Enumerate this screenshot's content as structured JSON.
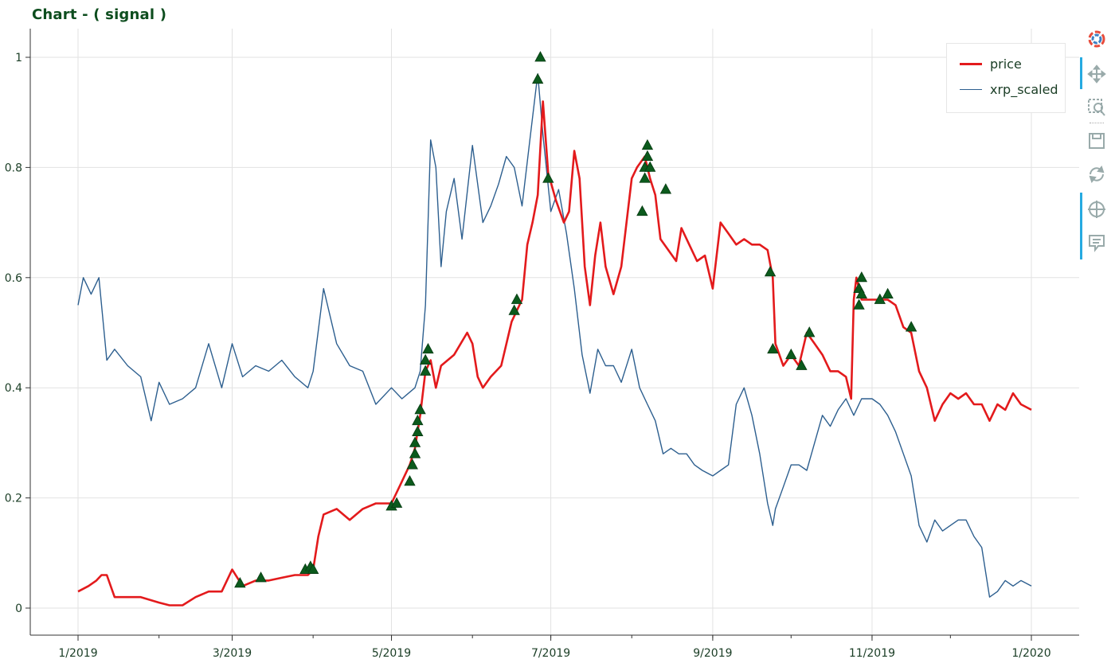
{
  "title": "Chart - ( signal )",
  "toolbar": {
    "tools": [
      "bokeh-logo-icon",
      "pan-icon",
      "box-zoom-icon",
      "save-icon",
      "reset-icon",
      "crosshair-icon",
      "hover-icon"
    ]
  },
  "chart_data": {
    "type": "line",
    "title": "Chart - ( signal )",
    "xlabel": "",
    "ylabel": "",
    "x_ticks": [
      "1/2019",
      "3/2019",
      "5/2019",
      "7/2019",
      "9/2019",
      "11/2019",
      "1/2020"
    ],
    "y_ticks": [
      "0",
      "0.2",
      "0.4",
      "0.6",
      "0.8",
      "1"
    ],
    "xlim": [
      "2018-12-10",
      "2020-01-28"
    ],
    "ylim": [
      -0.05,
      1.05
    ],
    "grid": true,
    "legend": "top-right",
    "colors": {
      "price": "#e31a1c",
      "xrp_scaled": "#2d5f8f",
      "signal": "#0b5a1c"
    },
    "series": [
      {
        "name": "price",
        "x": [
          "2019-01-01",
          "2019-01-05",
          "2019-01-08",
          "2019-01-10",
          "2019-01-12",
          "2019-01-15",
          "2019-01-20",
          "2019-01-25",
          "2019-02-01",
          "2019-02-05",
          "2019-02-10",
          "2019-02-15",
          "2019-02-20",
          "2019-02-25",
          "2019-03-01",
          "2019-03-05",
          "2019-03-10",
          "2019-03-15",
          "2019-03-20",
          "2019-03-25",
          "2019-03-30",
          "2019-04-01",
          "2019-04-03",
          "2019-04-05",
          "2019-04-10",
          "2019-04-15",
          "2019-04-20",
          "2019-04-25",
          "2019-05-01",
          "2019-05-05",
          "2019-05-08",
          "2019-05-10",
          "2019-05-12",
          "2019-05-14",
          "2019-05-16",
          "2019-05-18",
          "2019-05-20",
          "2019-05-25",
          "2019-05-30",
          "2019-06-01",
          "2019-06-03",
          "2019-06-05",
          "2019-06-08",
          "2019-06-12",
          "2019-06-16",
          "2019-06-18",
          "2019-06-20",
          "2019-06-22",
          "2019-06-24",
          "2019-06-26",
          "2019-06-28",
          "2019-06-30",
          "2019-07-03",
          "2019-07-06",
          "2019-07-08",
          "2019-07-10",
          "2019-07-12",
          "2019-07-14",
          "2019-07-16",
          "2019-07-18",
          "2019-07-20",
          "2019-07-22",
          "2019-07-25",
          "2019-07-28",
          "2019-08-01",
          "2019-08-03",
          "2019-08-06",
          "2019-08-08",
          "2019-08-10",
          "2019-08-12",
          "2019-08-15",
          "2019-08-18",
          "2019-08-20",
          "2019-08-23",
          "2019-08-26",
          "2019-08-29",
          "2019-09-01",
          "2019-09-04",
          "2019-09-07",
          "2019-09-10",
          "2019-09-13",
          "2019-09-16",
          "2019-09-19",
          "2019-09-22",
          "2019-09-24",
          "2019-09-25",
          "2019-09-28",
          "2019-10-01",
          "2019-10-04",
          "2019-10-07",
          "2019-10-10",
          "2019-10-13",
          "2019-10-16",
          "2019-10-19",
          "2019-10-22",
          "2019-10-24",
          "2019-10-25",
          "2019-10-26",
          "2019-10-28",
          "2019-11-01",
          "2019-11-04",
          "2019-11-07",
          "2019-11-10",
          "2019-11-13",
          "2019-11-16",
          "2019-11-19",
          "2019-11-22",
          "2019-11-25",
          "2019-11-28",
          "2019-12-01",
          "2019-12-04",
          "2019-12-07",
          "2019-12-10",
          "2019-12-13",
          "2019-12-16",
          "2019-12-19",
          "2019-12-22",
          "2019-12-25",
          "2019-12-28",
          "2020-01-01"
        ],
        "y": [
          0.03,
          0.04,
          0.05,
          0.06,
          0.06,
          0.02,
          0.02,
          0.02,
          0.01,
          0.005,
          0.005,
          0.02,
          0.03,
          0.03,
          0.07,
          0.04,
          0.05,
          0.05,
          0.055,
          0.06,
          0.06,
          0.07,
          0.13,
          0.17,
          0.18,
          0.16,
          0.18,
          0.19,
          0.19,
          0.23,
          0.26,
          0.29,
          0.35,
          0.43,
          0.45,
          0.4,
          0.44,
          0.46,
          0.5,
          0.48,
          0.42,
          0.4,
          0.42,
          0.44,
          0.52,
          0.54,
          0.56,
          0.66,
          0.7,
          0.75,
          0.92,
          0.79,
          0.74,
          0.7,
          0.72,
          0.83,
          0.78,
          0.62,
          0.55,
          0.64,
          0.7,
          0.62,
          0.57,
          0.62,
          0.78,
          0.8,
          0.82,
          0.78,
          0.75,
          0.67,
          0.65,
          0.63,
          0.69,
          0.66,
          0.63,
          0.64,
          0.58,
          0.7,
          0.68,
          0.66,
          0.67,
          0.66,
          0.66,
          0.65,
          0.6,
          0.48,
          0.44,
          0.46,
          0.44,
          0.5,
          0.48,
          0.46,
          0.43,
          0.43,
          0.42,
          0.38,
          0.56,
          0.6,
          0.56,
          0.56,
          0.56,
          0.56,
          0.55,
          0.51,
          0.5,
          0.43,
          0.4,
          0.34,
          0.37,
          0.39,
          0.38,
          0.39,
          0.37,
          0.37,
          0.34,
          0.37,
          0.36,
          0.39,
          0.37,
          0.36
        ]
      },
      {
        "name": "xrp_scaled",
        "x": [
          "2019-01-01",
          "2019-01-03",
          "2019-01-06",
          "2019-01-09",
          "2019-01-12",
          "2019-01-15",
          "2019-01-20",
          "2019-01-25",
          "2019-01-29",
          "2019-02-01",
          "2019-02-05",
          "2019-02-10",
          "2019-02-15",
          "2019-02-20",
          "2019-02-25",
          "2019-03-01",
          "2019-03-05",
          "2019-03-10",
          "2019-03-15",
          "2019-03-20",
          "2019-03-25",
          "2019-03-30",
          "2019-04-01",
          "2019-04-05",
          "2019-04-10",
          "2019-04-15",
          "2019-04-20",
          "2019-04-25",
          "2019-05-01",
          "2019-05-05",
          "2019-05-10",
          "2019-05-12",
          "2019-05-14",
          "2019-05-16",
          "2019-05-18",
          "2019-05-20",
          "2019-05-22",
          "2019-05-25",
          "2019-05-28",
          "2019-06-01",
          "2019-06-05",
          "2019-06-08",
          "2019-06-11",
          "2019-06-14",
          "2019-06-17",
          "2019-06-20",
          "2019-06-23",
          "2019-06-26",
          "2019-06-28",
          "2019-07-01",
          "2019-07-04",
          "2019-07-07",
          "2019-07-10",
          "2019-07-13",
          "2019-07-16",
          "2019-07-19",
          "2019-07-22",
          "2019-07-25",
          "2019-07-28",
          "2019-08-01",
          "2019-08-04",
          "2019-08-07",
          "2019-08-10",
          "2019-08-13",
          "2019-08-16",
          "2019-08-19",
          "2019-08-22",
          "2019-08-25",
          "2019-08-28",
          "2019-09-01",
          "2019-09-04",
          "2019-09-07",
          "2019-09-10",
          "2019-09-13",
          "2019-09-16",
          "2019-09-19",
          "2019-09-22",
          "2019-09-24",
          "2019-09-25",
          "2019-09-28",
          "2019-10-01",
          "2019-10-04",
          "2019-10-07",
          "2019-10-10",
          "2019-10-13",
          "2019-10-16",
          "2019-10-19",
          "2019-10-22",
          "2019-10-25",
          "2019-10-28",
          "2019-11-01",
          "2019-11-04",
          "2019-11-07",
          "2019-11-10",
          "2019-11-13",
          "2019-11-16",
          "2019-11-19",
          "2019-11-22",
          "2019-11-25",
          "2019-11-28",
          "2019-12-01",
          "2019-12-04",
          "2019-12-07",
          "2019-12-10",
          "2019-12-13",
          "2019-12-16",
          "2019-12-19",
          "2019-12-22",
          "2019-12-25",
          "2019-12-28",
          "2020-01-01"
        ],
        "y": [
          0.55,
          0.6,
          0.57,
          0.6,
          0.45,
          0.47,
          0.44,
          0.42,
          0.34,
          0.41,
          0.37,
          0.38,
          0.4,
          0.48,
          0.4,
          0.48,
          0.42,
          0.44,
          0.43,
          0.45,
          0.42,
          0.4,
          0.43,
          0.58,
          0.48,
          0.44,
          0.43,
          0.37,
          0.4,
          0.38,
          0.4,
          0.43,
          0.55,
          0.85,
          0.8,
          0.62,
          0.72,
          0.78,
          0.67,
          0.84,
          0.7,
          0.73,
          0.77,
          0.82,
          0.8,
          0.73,
          0.85,
          0.97,
          0.86,
          0.72,
          0.76,
          0.68,
          0.58,
          0.46,
          0.39,
          0.47,
          0.44,
          0.44,
          0.41,
          0.47,
          0.4,
          0.37,
          0.34,
          0.28,
          0.29,
          0.28,
          0.28,
          0.26,
          0.25,
          0.24,
          0.25,
          0.26,
          0.37,
          0.4,
          0.35,
          0.28,
          0.19,
          0.15,
          0.18,
          0.22,
          0.26,
          0.26,
          0.25,
          0.3,
          0.35,
          0.33,
          0.36,
          0.38,
          0.35,
          0.38,
          0.38,
          0.37,
          0.35,
          0.32,
          0.28,
          0.24,
          0.15,
          0.12,
          0.16,
          0.14,
          0.15,
          0.16,
          0.16,
          0.13,
          0.11,
          0.02,
          0.03,
          0.05,
          0.04,
          0.05,
          0.04
        ]
      },
      {
        "name": "signal",
        "marker": "triangle",
        "x": [
          "2019-03-04",
          "2019-03-12",
          "2019-03-29",
          "2019-03-31",
          "2019-04-01",
          "2019-05-01",
          "2019-05-03",
          "2019-05-08",
          "2019-05-09",
          "2019-05-10",
          "2019-05-10",
          "2019-05-11",
          "2019-05-11",
          "2019-05-12",
          "2019-05-14",
          "2019-05-14",
          "2019-05-15",
          "2019-06-17",
          "2019-06-18",
          "2019-06-26",
          "2019-06-27",
          "2019-06-30",
          "2019-08-05",
          "2019-08-06",
          "2019-08-06",
          "2019-08-07",
          "2019-08-07",
          "2019-08-08",
          "2019-08-14",
          "2019-09-23",
          "2019-09-24",
          "2019-10-01",
          "2019-10-05",
          "2019-10-08",
          "2019-10-27",
          "2019-10-27",
          "2019-10-28",
          "2019-10-28",
          "2019-11-04",
          "2019-11-07",
          "2019-11-16"
        ],
        "y": [
          0.045,
          0.055,
          0.07,
          0.075,
          0.07,
          0.185,
          0.19,
          0.23,
          0.26,
          0.28,
          0.3,
          0.32,
          0.34,
          0.36,
          0.43,
          0.45,
          0.47,
          0.54,
          0.56,
          0.96,
          1.0,
          0.78,
          0.72,
          0.78,
          0.8,
          0.82,
          0.84,
          0.8,
          0.76,
          0.61,
          0.47,
          0.46,
          0.44,
          0.5,
          0.55,
          0.58,
          0.6,
          0.57,
          0.56,
          0.57,
          0.51
        ]
      }
    ]
  }
}
